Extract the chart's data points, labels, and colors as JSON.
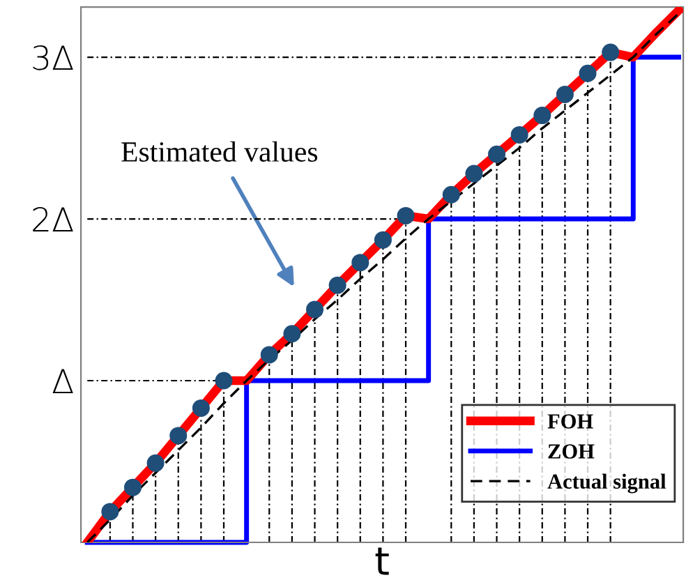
{
  "chart_data": {
    "type": "line",
    "xlabel": "t",
    "annotations": [
      "Estimated values"
    ],
    "categories": [
      null,
      null,
      null,
      null,
      null,
      null,
      null,
      null,
      null,
      null,
      null,
      null,
      null,
      null,
      null,
      null,
      null,
      null,
      null,
      null,
      null,
      null,
      null,
      null,
      null,
      null,
      null
    ],
    "ylim": [
      0,
      3.31
    ],
    "yticks": [
      {
        "value": 1,
        "label": "Δ"
      },
      {
        "value": 2,
        "label": "2Δ"
      },
      {
        "value": 3,
        "label": "3Δ"
      }
    ],
    "legend": "bottom right",
    "series": [
      {
        "color": "#000000",
        "line_style": "dotted",
        "values": [
          1,
          1,
          1,
          1,
          1,
          1,
          1,
          1,
          null,
          null,
          null,
          null,
          null,
          null,
          null,
          null,
          null,
          null,
          null,
          null,
          null,
          null,
          null,
          null,
          null,
          null,
          null
        ]
      },
      {
        "color": "#000000",
        "line_style": "dotted",
        "values": [
          2,
          2,
          2,
          2,
          2,
          2,
          2,
          2,
          2,
          2,
          2,
          2,
          2,
          2,
          2,
          2,
          null,
          null,
          null,
          null,
          null,
          null,
          null,
          null,
          null,
          null,
          null
        ]
      },
      {
        "color": "#000000",
        "line_style": "dotted",
        "values": [
          3,
          3,
          3,
          3,
          3,
          3,
          3,
          3,
          3,
          3,
          3,
          3,
          3,
          3,
          3,
          3,
          3,
          3,
          3,
          3,
          3,
          3,
          3,
          3,
          3,
          null,
          null
        ]
      },
      {
        "type": "lollipop",
        "color": "#1f4e79",
        "marker": "circle",
        "line_style": "dotted",
        "values": [
          null,
          0.19,
          0.34,
          0.49,
          0.66,
          0.83,
          1.0,
          null,
          1.16,
          1.29,
          1.44,
          1.59,
          1.73,
          1.87,
          2.02,
          null,
          2.15,
          2.28,
          2.4,
          2.52,
          2.64,
          2.77,
          2.9,
          3.03,
          null,
          null,
          null
        ]
      },
      {
        "name": "FOH",
        "color": "#ff0000",
        "line_style": "solid",
        "values": [
          0,
          0.19,
          0.34,
          0.49,
          0.66,
          0.83,
          1.0,
          1,
          1.16,
          1.29,
          1.44,
          1.59,
          1.73,
          1.87,
          2.02,
          2,
          2.15,
          2.28,
          2.4,
          2.52,
          2.64,
          2.77,
          2.9,
          3.03,
          3,
          3.15,
          3.29
        ]
      },
      {
        "type": "step",
        "name": "ZOH",
        "color": "#0000ff",
        "line_style": "solid",
        "values": [
          0,
          0,
          0,
          0,
          0,
          0,
          0,
          1,
          1,
          1,
          1,
          1,
          1,
          1,
          1,
          2,
          2,
          2,
          2,
          2,
          2,
          2,
          2,
          2,
          3,
          3,
          3
        ]
      },
      {
        "name": "Actual signal",
        "color": "#000000",
        "line_style": "dashed",
        "values": [
          0,
          0.14,
          0.29,
          0.43,
          0.57,
          0.71,
          0.86,
          1,
          1.13,
          1.25,
          1.38,
          1.5,
          1.63,
          1.75,
          1.88,
          2,
          2.11,
          2.22,
          2.33,
          2.44,
          2.56,
          2.67,
          2.78,
          2.89,
          3,
          3.14,
          3.27
        ]
      }
    ]
  }
}
